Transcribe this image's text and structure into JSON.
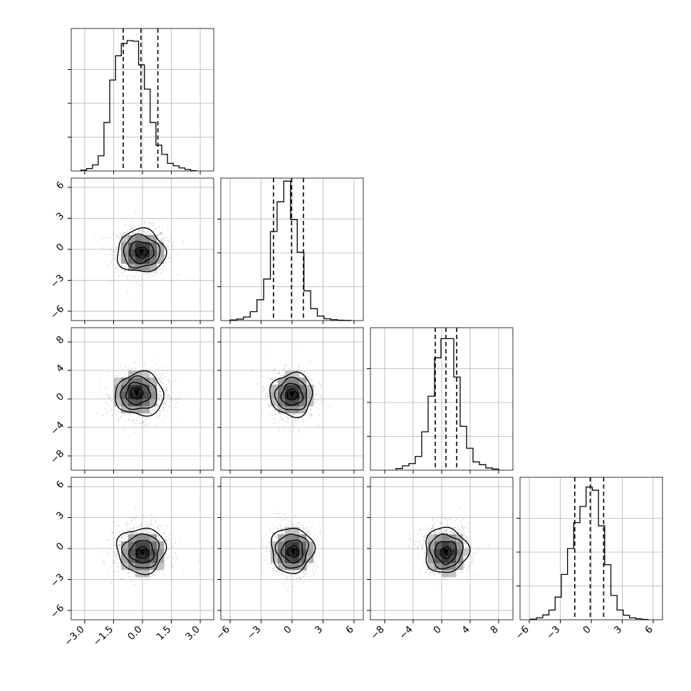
{
  "chart_data": {
    "type": "corner",
    "n_params": 4,
    "params": [
      {
        "range": [
          -3.7,
          3.7
        ],
        "hist_ylim": [
          0,
          0.47
        ],
        "ticks": [
          -3.0,
          -1.5,
          0.0,
          1.5,
          3.0
        ],
        "tick_labels": [
          "−3.0",
          "−1.5",
          "0.0",
          "1.5",
          "3.0"
        ],
        "quantiles": [
          -1.0,
          -0.08,
          0.8
        ],
        "hist": {
          "edges": [
            -3.2,
            -2.9,
            -2.6,
            -2.3,
            -2.0,
            -1.7,
            -1.4,
            -1.1,
            -0.8,
            -0.5,
            -0.2,
            0.1,
            0.4,
            0.7,
            1.0,
            1.3,
            1.6,
            1.9,
            2.2,
            2.5,
            2.8
          ],
          "values": [
            0.003,
            0.008,
            0.02,
            0.05,
            0.16,
            0.3,
            0.38,
            0.42,
            0.43,
            0.428,
            0.35,
            0.27,
            0.16,
            0.085,
            0.055,
            0.025,
            0.017,
            0.01,
            0.005,
            0.001
          ]
        }
      },
      {
        "range": [
          -6.9,
          6.9
        ],
        "hist_ylim": [
          0,
          0.48
        ],
        "ticks": [
          -6,
          -3,
          0,
          3,
          6
        ],
        "tick_labels": [
          "−6",
          "−3",
          "0",
          "3",
          "6"
        ],
        "quantiles": [
          -1.8,
          -0.05,
          1.1
        ],
        "hist": {
          "edges": [
            -6.0,
            -5.35,
            -4.7,
            -4.05,
            -3.4,
            -2.75,
            -2.1,
            -1.45,
            -0.8,
            -0.15,
            0.5,
            1.15,
            1.8,
            2.45,
            3.1,
            3.75,
            4.4,
            5.05,
            5.7
          ],
          "values": [
            0.002,
            0.005,
            0.012,
            0.03,
            0.07,
            0.14,
            0.3,
            0.4,
            0.47,
            0.34,
            0.23,
            0.1,
            0.04,
            0.015,
            0.006,
            0.003,
            0.001,
            0.0005
          ]
        }
      },
      {
        "range": [
          -10.0,
          10.0
        ],
        "hist_ylim": [
          0,
          0.26
        ],
        "ticks": [
          -8,
          -4,
          0,
          4,
          8
        ],
        "tick_labels": [
          "−8",
          "−4",
          "0",
          "4",
          "8"
        ],
        "quantiles": [
          -0.9,
          0.6,
          2.1
        ],
        "hist": {
          "edges": [
            -6.4,
            -5.5,
            -4.6,
            -3.7,
            -2.8,
            -1.9,
            -1.0,
            -0.1,
            0.8,
            1.7,
            2.6,
            3.5,
            4.4,
            5.3,
            6.2,
            7.1,
            8.0
          ],
          "values": [
            0.003,
            0.008,
            0.012,
            0.025,
            0.07,
            0.135,
            0.205,
            0.24,
            0.24,
            0.17,
            0.08,
            0.04,
            0.015,
            0.01,
            0.004,
            0.002
          ]
        }
      },
      {
        "range": [
          -6.9,
          6.9
        ],
        "hist_ylim": [
          0,
          0.44
        ],
        "ticks": [
          -6,
          -3,
          0,
          3,
          6
        ],
        "tick_labels": [
          "−6",
          "−3",
          "0",
          "3",
          "6"
        ],
        "quantiles": [
          -1.6,
          -0.1,
          1.2
        ],
        "hist": {
          "edges": [
            -5.9,
            -5.3,
            -4.7,
            -4.1,
            -3.5,
            -2.9,
            -2.3,
            -1.7,
            -1.1,
            -0.5,
            0.1,
            0.7,
            1.3,
            1.9,
            2.5,
            3.1,
            3.7,
            4.3,
            4.9,
            5.5
          ],
          "values": [
            0.002,
            0.006,
            0.015,
            0.03,
            0.07,
            0.14,
            0.22,
            0.3,
            0.35,
            0.41,
            0.4,
            0.29,
            0.17,
            0.075,
            0.03,
            0.014,
            0.006,
            0.003,
            0.001
          ]
        }
      }
    ],
    "pairs": [
      {
        "row": 1,
        "col": 0,
        "center": [
          -0.08,
          -0.15
        ],
        "sigma": [
          0.66,
          1.1
        ],
        "peak": [
          -0.05,
          -0.3
        ]
      },
      {
        "row": 2,
        "col": 0,
        "center": [
          -0.08,
          0.6
        ],
        "sigma": [
          0.66,
          1.6
        ],
        "peak": [
          -0.3,
          0.8
        ]
      },
      {
        "row": 2,
        "col": 1,
        "center": [
          -0.05,
          0.6
        ],
        "sigma": [
          1.08,
          1.6
        ],
        "peak": [
          0.0,
          0.6
        ]
      },
      {
        "row": 3,
        "col": 0,
        "center": [
          -0.08,
          -0.1
        ],
        "sigma": [
          0.66,
          1.15
        ],
        "peak": [
          0.0,
          -0.4
        ]
      },
      {
        "row": 3,
        "col": 1,
        "center": [
          -0.05,
          -0.1
        ],
        "sigma": [
          1.08,
          1.15
        ],
        "peak": [
          0.1,
          -0.3
        ]
      },
      {
        "row": 3,
        "col": 2,
        "center": [
          0.6,
          -0.1
        ],
        "sigma": [
          1.6,
          1.15
        ],
        "peak": [
          0.6,
          -0.4
        ]
      }
    ],
    "contour_levels": [
      0.5,
      1.0,
      1.5,
      2.0
    ],
    "grid": true,
    "colors": {
      "line": "#000000",
      "points": "#8c8c8c",
      "grid": "#b0b0b0",
      "density_dark": "#1a1a1a"
    }
  }
}
